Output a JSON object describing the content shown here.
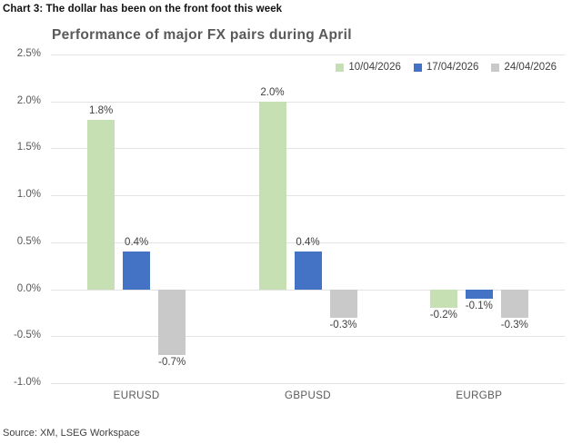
{
  "header": {
    "title": "Chart 3: The dollar has been on the front foot this week"
  },
  "chart_data": {
    "type": "bar",
    "title": "Performance of major FX pairs during April",
    "categories": [
      "EURUSD",
      "GBPUSD",
      "EURGBP"
    ],
    "series": [
      {
        "name": "10/04/2026",
        "color": "#c6e0b4",
        "values": [
          1.8,
          2.0,
          -0.2
        ],
        "labels": [
          "1.8%",
          "2.0%",
          "-0.2%"
        ]
      },
      {
        "name": "17/04/2026",
        "color": "#4472c4",
        "values": [
          0.4,
          0.4,
          -0.1
        ],
        "labels": [
          "0.4%",
          "0.4%",
          "-0.1%"
        ]
      },
      {
        "name": "24/04/2026",
        "color": "#c9c9c9",
        "values": [
          -0.7,
          -0.3,
          -0.3
        ],
        "labels": [
          "-0.7%",
          "-0.3%",
          "-0.3%"
        ]
      }
    ],
    "ylim": [
      -1.0,
      2.5
    ],
    "ytick_step": 0.5,
    "ytick_labels": [
      "2.5%",
      "2.0%",
      "1.5%",
      "1.0%",
      "0.5%",
      "0.0%",
      "-0.5%",
      "-1.0%"
    ],
    "xlabel": "",
    "ylabel": "",
    "grid": true,
    "legend_position": "top-right",
    "colors": {
      "gridline": "#e3e3e3",
      "title": "#595959",
      "tick_label": "#595959",
      "data_label": "#404040"
    }
  },
  "source": {
    "text": "Source: XM, LSEG Workspace"
  }
}
